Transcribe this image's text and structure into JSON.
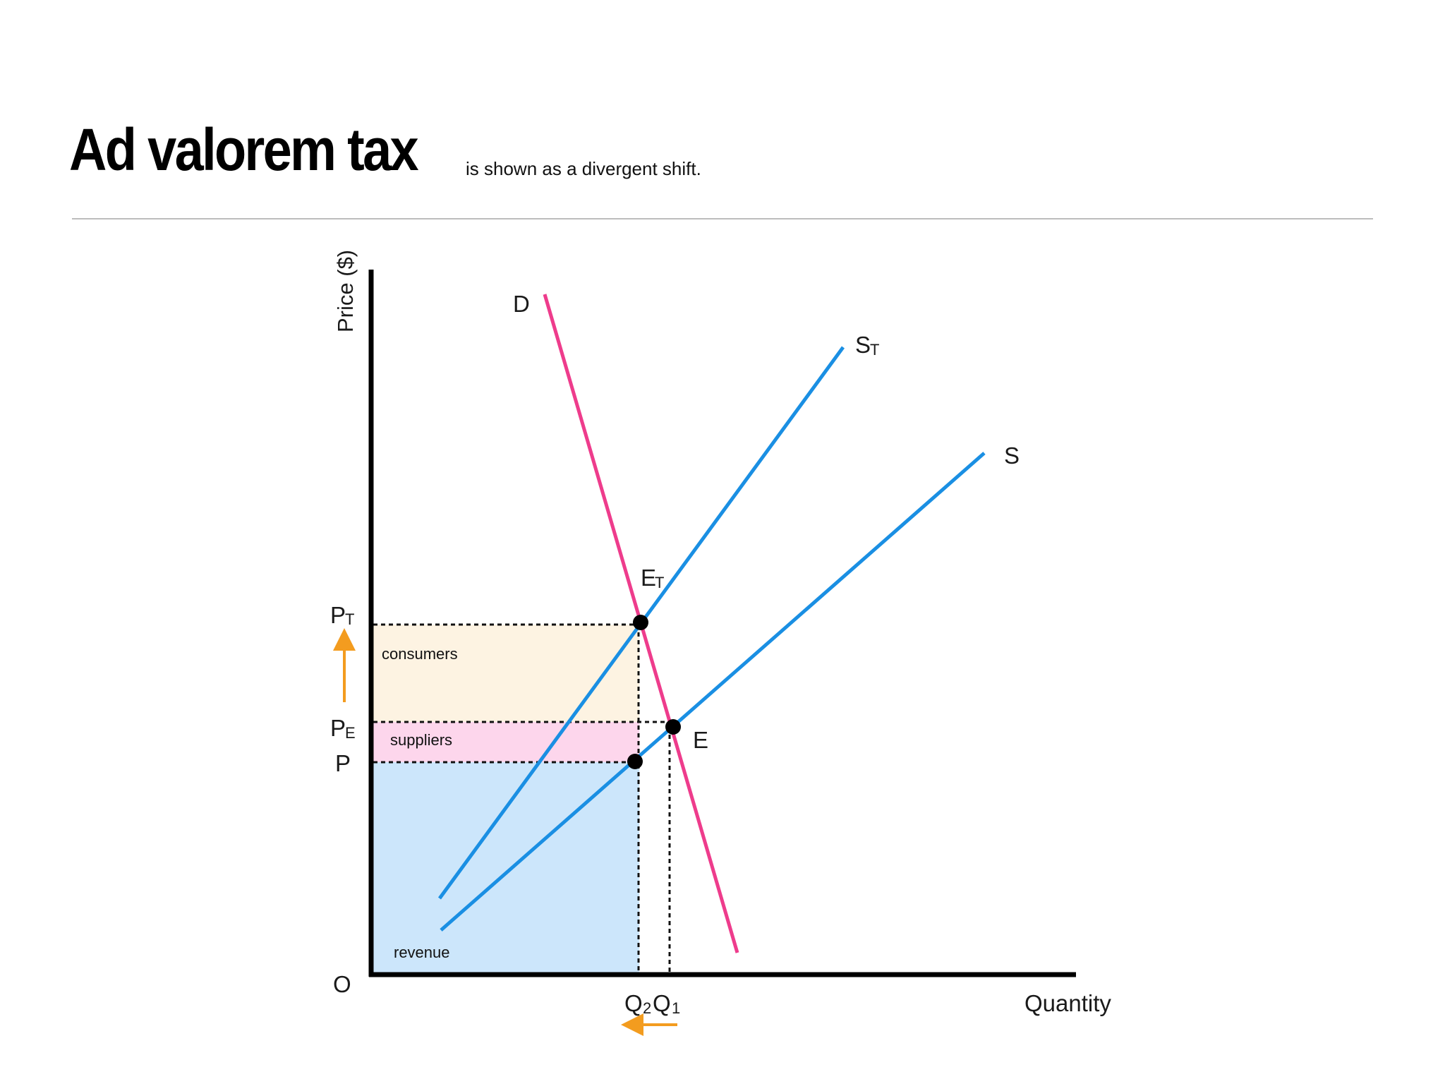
{
  "header": {
    "title": "Ad valorem tax",
    "subtitle": "is shown as a divergent shift."
  },
  "axes": {
    "y_label": "Price ($)",
    "x_label": "Quantity",
    "origin": "O"
  },
  "curves": {
    "demand": {
      "label": "D",
      "color": "#ee3c8c"
    },
    "supply": {
      "label": "S",
      "color": "#1a8fe3"
    },
    "supply_tax": {
      "label": "S",
      "sub": "T",
      "color": "#1a8fe3"
    }
  },
  "points": {
    "e": {
      "label": "E"
    },
    "et": {
      "label": "E",
      "sub": "T"
    }
  },
  "price_labels": {
    "pt": {
      "main": "P",
      "sub": "T"
    },
    "pe": {
      "main": "P",
      "sub": "E"
    },
    "p": {
      "main": "P"
    }
  },
  "quantity_labels": {
    "q2": {
      "main": "Q",
      "sub": "2"
    },
    "q1": {
      "main": "Q",
      "sub": "1"
    }
  },
  "areas": {
    "consumers": {
      "label": "consumers",
      "color": "#fdf3e2"
    },
    "suppliers": {
      "label": "suppliers",
      "color": "#fdd6ec"
    },
    "revenue": {
      "label": "revenue",
      "color": "#cce6fb"
    }
  },
  "colors": {
    "arrow": "#f39c1f",
    "axis": "#000000",
    "dashed": "#111111",
    "point": "#000000"
  }
}
